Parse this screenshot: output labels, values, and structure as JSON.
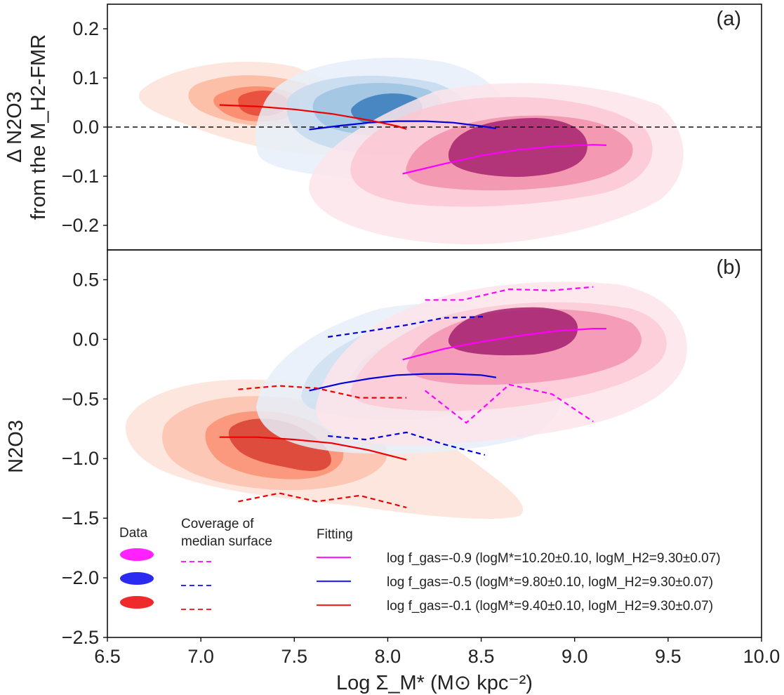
{
  "chart_data": [
    {
      "panel_label": "(a)",
      "type": "line",
      "ylabel_line1": "Δ N2O3",
      "ylabel_line2": "from the M_H2-FMR",
      "ylim": [
        -0.25,
        0.25
      ],
      "yticks": [
        {
          "v": 0.2,
          "label": "0.2"
        },
        {
          "v": 0.1,
          "label": "0.1"
        },
        {
          "v": 0.0,
          "label": "0.0"
        },
        {
          "v": -0.1,
          "label": "−0.1"
        },
        {
          "v": -0.2,
          "label": "−0.2"
        }
      ],
      "reference_line": 0.0,
      "series": [
        {
          "name": "log fgas=-0.9 fitting",
          "color": "#ff00ff",
          "style": "solid",
          "x": [
            8.08,
            8.3,
            8.5,
            8.7,
            8.9,
            9.1,
            9.17
          ],
          "y": [
            -0.095,
            -0.075,
            -0.058,
            -0.046,
            -0.039,
            -0.036,
            -0.037
          ]
        },
        {
          "name": "log fgas=-0.5 fitting",
          "color": "#0000dd",
          "style": "solid",
          "x": [
            7.58,
            7.75,
            7.9,
            8.05,
            8.2,
            8.35,
            8.5,
            8.58
          ],
          "y": [
            -0.005,
            0.003,
            0.009,
            0.012,
            0.012,
            0.009,
            0.002,
            -0.003
          ]
        },
        {
          "name": "log fgas=-0.1 fitting",
          "color": "#ee0000",
          "style": "solid",
          "x": [
            7.1,
            7.3,
            7.5,
            7.7,
            7.9,
            8.05,
            8.1
          ],
          "y": [
            0.045,
            0.042,
            0.036,
            0.027,
            0.014,
            0.002,
            -0.004
          ]
        }
      ]
    },
    {
      "panel_label": "(b)",
      "type": "line",
      "ylabel": "N2O3",
      "ylim": [
        -2.5,
        0.75
      ],
      "yticks": [
        {
          "v": 0.5,
          "label": "0.5"
        },
        {
          "v": 0.0,
          "label": "0.0"
        },
        {
          "v": -0.5,
          "label": "−0.5"
        },
        {
          "v": -1.0,
          "label": "−1.0"
        },
        {
          "v": -1.5,
          "label": "−1.5"
        },
        {
          "v": -2.0,
          "label": "−2.0"
        },
        {
          "v": -2.5,
          "label": "−2.5"
        }
      ],
      "series": [
        {
          "name": "log fgas=-0.9 fitting",
          "color": "#ff00ff",
          "style": "solid",
          "x": [
            8.08,
            8.3,
            8.5,
            8.7,
            8.9,
            9.1,
            9.17
          ],
          "y": [
            -0.17,
            -0.08,
            -0.02,
            0.03,
            0.07,
            0.09,
            0.09
          ]
        },
        {
          "name": "log fgas=-0.9 coverage upper",
          "color": "#ff00ff",
          "style": "dashed",
          "x": [
            8.2,
            8.4,
            8.65,
            8.88,
            9.1
          ],
          "y": [
            0.33,
            0.33,
            0.42,
            0.41,
            0.44
          ]
        },
        {
          "name": "log fgas=-0.9 coverage lower",
          "color": "#ff00ff",
          "style": "dashed",
          "x": [
            8.2,
            8.42,
            8.65,
            8.88,
            9.1
          ],
          "y": [
            -0.43,
            -0.7,
            -0.38,
            -0.46,
            -0.69
          ]
        },
        {
          "name": "log fgas=-0.5 fitting",
          "color": "#0000dd",
          "style": "solid",
          "x": [
            7.58,
            7.75,
            7.9,
            8.05,
            8.2,
            8.35,
            8.5,
            8.58
          ],
          "y": [
            -0.43,
            -0.37,
            -0.33,
            -0.3,
            -0.29,
            -0.29,
            -0.3,
            -0.32
          ]
        },
        {
          "name": "log fgas=-0.5 coverage upper",
          "color": "#0000dd",
          "style": "dashed",
          "x": [
            7.68,
            7.9,
            8.1,
            8.3,
            8.52
          ],
          "y": [
            0.02,
            0.07,
            0.12,
            0.18,
            0.19
          ]
        },
        {
          "name": "log fgas=-0.5 coverage lower",
          "color": "#0000dd",
          "style": "dashed",
          "x": [
            7.68,
            7.88,
            8.1,
            8.3,
            8.52
          ],
          "y": [
            -0.81,
            -0.84,
            -0.78,
            -0.88,
            -0.97
          ]
        },
        {
          "name": "log fgas=-0.1 fitting",
          "color": "#ee0000",
          "style": "solid",
          "x": [
            7.1,
            7.3,
            7.5,
            7.7,
            7.9,
            8.1
          ],
          "y": [
            -0.82,
            -0.82,
            -0.84,
            -0.87,
            -0.93,
            -1.01
          ]
        },
        {
          "name": "log fgas=-0.1 coverage upper",
          "color": "#ee0000",
          "style": "dashed",
          "x": [
            7.2,
            7.42,
            7.62,
            7.85,
            8.1
          ],
          "y": [
            -0.42,
            -0.39,
            -0.41,
            -0.49,
            -0.49
          ]
        },
        {
          "name": "log fgas=-0.1 coverage lower",
          "color": "#ee0000",
          "style": "dashed",
          "x": [
            7.2,
            7.42,
            7.62,
            7.85,
            8.1
          ],
          "y": [
            -1.36,
            -1.29,
            -1.36,
            -1.31,
            -1.41
          ]
        }
      ]
    }
  ],
  "x_axis": {
    "xlim": [
      6.5,
      10.0
    ],
    "ticks": [
      {
        "v": 6.5,
        "label": "6.5"
      },
      {
        "v": 7.0,
        "label": "7.0"
      },
      {
        "v": 7.5,
        "label": "7.5"
      },
      {
        "v": 8.0,
        "label": "8.0"
      },
      {
        "v": 8.5,
        "label": "8.5"
      },
      {
        "v": 9.0,
        "label": "9.0"
      },
      {
        "v": 9.5,
        "label": "9.5"
      },
      {
        "v": 10.0,
        "label": "10.0"
      }
    ],
    "label": "Log Σ_M* (M⊙ kpc⁻²)"
  },
  "legend": {
    "headers": {
      "data": "Data",
      "coverage_line1": "Coverage of",
      "coverage_line2": "median surface",
      "fitting": "Fitting"
    },
    "rows": [
      {
        "color": "#ff22ff",
        "text": "log f_gas=-0.9 (logM*=10.20±0.10, logM_H2=9.30±0.07)"
      },
      {
        "color": "#2a2af0",
        "text": "log f_gas=-0.5 (logM*=9.80±0.10, logM_H2=9.30±0.07)"
      },
      {
        "color": "#f02a2a",
        "text": "log f_gas=-0.1 (logM*=9.40±0.10, logM_H2=9.30±0.07)"
      }
    ]
  }
}
